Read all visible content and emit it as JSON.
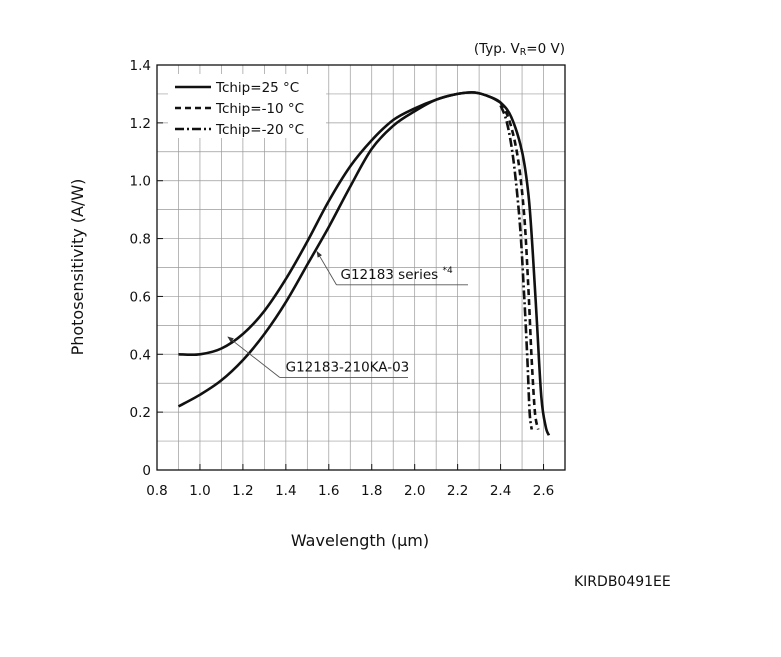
{
  "chart_data": {
    "type": "line",
    "condition": "(Typ. VR=0 V)",
    "xlabel": "Wavelength (μm)",
    "ylabel": "Photosensitivity (A/W)",
    "xlim": [
      0.8,
      2.7
    ],
    "ylim": [
      0,
      1.4
    ],
    "xticks": [
      "0.8",
      "1.0",
      "1.2",
      "1.4",
      "1.6",
      "1.8",
      "2.0",
      "2.2",
      "2.4",
      "2.6"
    ],
    "yticks": [
      "0",
      "0.2",
      "0.4",
      "0.6",
      "0.8",
      "1.0",
      "1.2",
      "1.4"
    ],
    "grid": true,
    "legend_placement": "top-left",
    "legend": [
      {
        "label": "Tchip=25 °C",
        "style": "solid"
      },
      {
        "label": "Tchip=-10 °C",
        "style": "dashed"
      },
      {
        "label": "Tchip=-20 °C",
        "style": "dashdot"
      }
    ],
    "annotations": [
      {
        "text": "G12183 series *4",
        "x": 1.58,
        "y": 0.64
      },
      {
        "text": "G12183-210KA-03",
        "x": 1.25,
        "y": 0.41
      }
    ],
    "series": [
      {
        "curve": "G12183 series",
        "style": "solid",
        "x": [
          0.9,
          1.0,
          1.1,
          1.2,
          1.3,
          1.4,
          1.5,
          1.6,
          1.7,
          1.8,
          1.9,
          2.0,
          2.1,
          2.2,
          2.28,
          2.35,
          2.4,
          2.45,
          2.5,
          2.53,
          2.55,
          2.57,
          2.59,
          2.61,
          2.625
        ],
        "y": [
          0.4,
          0.4,
          0.42,
          0.47,
          0.55,
          0.66,
          0.79,
          0.93,
          1.05,
          1.14,
          1.21,
          1.25,
          1.28,
          1.3,
          1.305,
          1.29,
          1.27,
          1.22,
          1.1,
          0.95,
          0.75,
          0.5,
          0.25,
          0.15,
          0.12
        ]
      },
      {
        "curve": "G12183-210KA-03",
        "style": "solid",
        "x": [
          0.9,
          1.0,
          1.1,
          1.2,
          1.3,
          1.4,
          1.5,
          1.6,
          1.7,
          1.8,
          1.9,
          2.0,
          2.1,
          2.2,
          2.28,
          2.35,
          2.4
        ],
        "y": [
          0.22,
          0.26,
          0.31,
          0.38,
          0.47,
          0.58,
          0.71,
          0.84,
          0.98,
          1.11,
          1.19,
          1.24,
          1.28,
          1.3,
          1.305,
          1.29,
          1.27
        ]
      },
      {
        "curve": "Tchip=-10 °C",
        "style": "dashed",
        "x": [
          2.4,
          2.44,
          2.48,
          2.51,
          2.53,
          2.545,
          2.56,
          2.575
        ],
        "y": [
          1.27,
          1.21,
          1.08,
          0.88,
          0.62,
          0.38,
          0.2,
          0.14
        ]
      },
      {
        "curve": "Tchip=-20 °C",
        "style": "dashdot",
        "x": [
          2.4,
          2.43,
          2.46,
          2.49,
          2.51,
          2.525,
          2.535,
          2.545
        ],
        "y": [
          1.26,
          1.2,
          1.07,
          0.85,
          0.6,
          0.38,
          0.2,
          0.14
        ]
      }
    ]
  },
  "footer_code": "KIRDB0491EE"
}
